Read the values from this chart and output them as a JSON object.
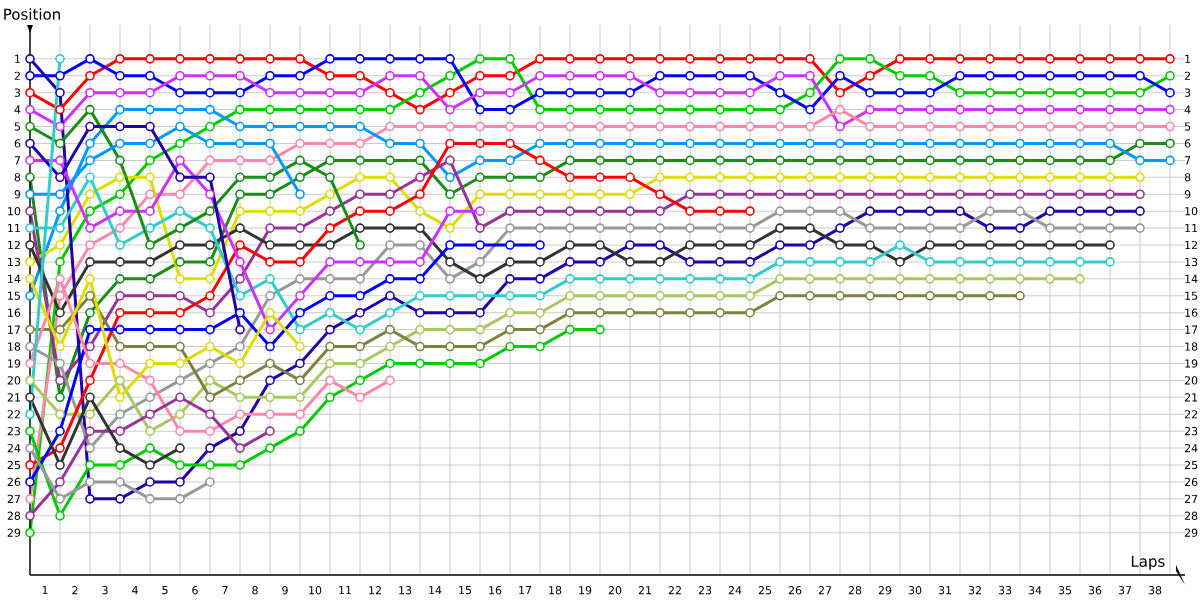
{
  "chart_data": {
    "type": "line",
    "xlabel": "Laps",
    "ylabel": "Position",
    "x": [
      0,
      1,
      2,
      3,
      4,
      5,
      6,
      7,
      8,
      9,
      10,
      11,
      12,
      13,
      14,
      15,
      16,
      17,
      18,
      19,
      20,
      21,
      22,
      23,
      24,
      25,
      26,
      27,
      28,
      29,
      30,
      31,
      32,
      33,
      34,
      35,
      36,
      37,
      38
    ],
    "xlim": [
      0,
      38.5
    ],
    "xticks": [
      {
        "value": 0.5,
        "label": "1"
      },
      {
        "value": 1.5,
        "label": "2"
      },
      {
        "value": 2.5,
        "label": "3"
      },
      {
        "value": 3.5,
        "label": "4"
      },
      {
        "value": 4.5,
        "label": "5"
      },
      {
        "value": 5.5,
        "label": "6"
      },
      {
        "value": 6.5,
        "label": "7"
      },
      {
        "value": 7.5,
        "label": "8"
      },
      {
        "value": 8.5,
        "label": "9"
      },
      {
        "value": 9.5,
        "label": "10"
      },
      {
        "value": 10.5,
        "label": "11"
      },
      {
        "value": 11.5,
        "label": "12"
      },
      {
        "value": 12.5,
        "label": "13"
      },
      {
        "value": 13.5,
        "label": "14"
      },
      {
        "value": 14.5,
        "label": "15"
      },
      {
        "value": 15.5,
        "label": "16"
      },
      {
        "value": 16.5,
        "label": "17"
      },
      {
        "value": 17.5,
        "label": "18"
      },
      {
        "value": 18.5,
        "label": "19"
      },
      {
        "value": 19.5,
        "label": "20"
      },
      {
        "value": 20.5,
        "label": "21"
      },
      {
        "value": 21.5,
        "label": "22"
      },
      {
        "value": 22.5,
        "label": "23"
      },
      {
        "value": 23.5,
        "label": "24"
      },
      {
        "value": 24.5,
        "label": "25"
      },
      {
        "value": 25.5,
        "label": "26"
      },
      {
        "value": 26.5,
        "label": "27"
      },
      {
        "value": 27.5,
        "label": "28"
      },
      {
        "value": 28.5,
        "label": "29"
      },
      {
        "value": 29.5,
        "label": "30"
      },
      {
        "value": 30.5,
        "label": "31"
      },
      {
        "value": 31.5,
        "label": "32"
      },
      {
        "value": 32.5,
        "label": "33"
      },
      {
        "value": 33.5,
        "label": "34"
      },
      {
        "value": 34.5,
        "label": "35"
      },
      {
        "value": 35.5,
        "label": "36"
      },
      {
        "value": 36.5,
        "label": "37"
      },
      {
        "value": 37.5,
        "label": "38"
      }
    ],
    "ylim": [
      31.5,
      -1
    ],
    "yticks": [
      1,
      2,
      3,
      4,
      5,
      6,
      7,
      8,
      9,
      10,
      11,
      12,
      13,
      14,
      15,
      16,
      17,
      18,
      19,
      20,
      21,
      22,
      23,
      24,
      25,
      26,
      27,
      28,
      29
    ],
    "y2lim": [
      31.5,
      -1
    ],
    "y2ticks": [
      1,
      2,
      3,
      4,
      5,
      6,
      7,
      8,
      9,
      10,
      11,
      12,
      13,
      14,
      15,
      16,
      17,
      18,
      19,
      20,
      21,
      22,
      23,
      24,
      25,
      26,
      27,
      28,
      29
    ],
    "grid": true,
    "marker": "circle",
    "line_style": "solid",
    "series": [
      {
        "color": "#ff0000",
        "values": [
          3,
          4,
          2,
          1,
          1,
          1,
          1,
          1,
          1,
          1,
          2,
          2,
          3,
          4,
          3,
          2,
          2,
          1,
          1,
          1,
          1,
          1,
          1,
          1,
          1,
          1,
          1,
          3,
          2,
          1,
          1,
          1,
          1,
          1,
          1,
          1,
          1,
          1,
          1
        ]
      },
      {
        "color": "#00cc00",
        "values": [
          29,
          13,
          10,
          9,
          7,
          6,
          5,
          4,
          4,
          4,
          4,
          4,
          4,
          3,
          2,
          1,
          1,
          4,
          4,
          4,
          4,
          4,
          4,
          4,
          4,
          4,
          3,
          1,
          1,
          2,
          2,
          3,
          3,
          3,
          3,
          3,
          3,
          3,
          2
        ]
      },
      {
        "color": "#0000ff",
        "values": [
          2,
          2,
          1,
          2,
          2,
          3,
          3,
          3,
          2,
          2,
          1,
          1,
          1,
          1,
          1,
          4,
          4,
          3,
          3,
          3,
          3,
          2,
          2,
          2,
          2,
          3,
          4,
          2,
          3,
          3,
          3,
          2,
          2,
          2,
          2,
          2,
          2,
          2,
          3
        ]
      },
      {
        "color": "#cc33ff",
        "values": [
          4,
          5,
          3,
          3,
          3,
          2,
          2,
          2,
          3,
          3,
          3,
          3,
          2,
          2,
          4,
          3,
          3,
          2,
          2,
          2,
          2,
          3,
          3,
          3,
          3,
          2,
          2,
          5,
          4,
          4,
          4,
          4,
          4,
          4,
          4,
          4,
          4,
          4,
          4
        ]
      },
      {
        "color": "#ff88aa",
        "values": [
          27,
          15,
          12,
          11,
          9,
          9,
          7,
          7,
          7,
          6,
          6,
          6,
          5,
          5,
          5,
          5,
          5,
          5,
          5,
          5,
          5,
          5,
          5,
          5,
          5,
          5,
          5,
          4,
          5,
          5,
          5,
          5,
          5,
          5,
          5,
          5,
          5,
          5,
          5
        ]
      },
      {
        "color": "#1a8c1a",
        "values": [
          8,
          21,
          16,
          14,
          14,
          13,
          13,
          9,
          9,
          8,
          7,
          7,
          7,
          7,
          9,
          8,
          8,
          8,
          7,
          7,
          7,
          7,
          7,
          7,
          7,
          7,
          7,
          7,
          7,
          7,
          7,
          7,
          7,
          7,
          7,
          7,
          7,
          6,
          6
        ]
      },
      {
        "color": "#0099ff",
        "values": [
          15,
          10,
          6,
          4,
          4,
          4,
          4,
          5,
          5,
          5,
          5,
          5,
          6,
          6,
          8,
          7,
          7,
          6,
          6,
          6,
          6,
          6,
          6,
          6,
          6,
          6,
          6,
          6,
          6,
          6,
          6,
          6,
          6,
          6,
          6,
          6,
          6,
          7,
          7
        ]
      },
      {
        "color": "#dddd00",
        "values": [
          13,
          12,
          9,
          8,
          8,
          14,
          14,
          10,
          10,
          10,
          9,
          8,
          8,
          10,
          11,
          9,
          9,
          9,
          9,
          9,
          9,
          8,
          8,
          8,
          8,
          8,
          8,
          8,
          8,
          8,
          8,
          8,
          8,
          8,
          8,
          8,
          8,
          8,
          null
        ]
      },
      {
        "color": "#993399",
        "values": [
          10,
          20,
          18,
          15,
          15,
          15,
          16,
          14,
          11,
          11,
          10,
          9,
          9,
          8,
          7,
          11,
          10,
          10,
          10,
          10,
          10,
          10,
          9,
          9,
          9,
          9,
          9,
          9,
          9,
          9,
          9,
          9,
          9,
          9,
          9,
          9,
          9,
          9,
          null
        ]
      },
      {
        "color": "#2200aa",
        "values": [
          1,
          3,
          27,
          27,
          26,
          26,
          24,
          23,
          20,
          19,
          17,
          16,
          15,
          16,
          16,
          16,
          14,
          14,
          13,
          13,
          12,
          12,
          13,
          13,
          13,
          12,
          12,
          11,
          10,
          10,
          10,
          10,
          11,
          11,
          10,
          10,
          10,
          10,
          null
        ]
      },
      {
        "color": "#999999",
        "values": [
          18,
          19,
          24,
          22,
          21,
          20,
          19,
          18,
          15,
          14,
          14,
          14,
          12,
          12,
          14,
          13,
          11,
          11,
          11,
          11,
          11,
          11,
          11,
          11,
          11,
          10,
          10,
          10,
          11,
          11,
          11,
          11,
          10,
          10,
          11,
          11,
          11,
          11,
          null
        ]
      },
      {
        "color": "#333333",
        "values": [
          12,
          16,
          13,
          13,
          13,
          12,
          12,
          11,
          12,
          12,
          12,
          11,
          11,
          11,
          13,
          14,
          13,
          13,
          12,
          12,
          13,
          13,
          12,
          12,
          12,
          11,
          11,
          12,
          12,
          13,
          12,
          12,
          12,
          12,
          12,
          12,
          12,
          null,
          null
        ]
      },
      {
        "color": "#33cccc",
        "values": [
          11,
          11,
          8,
          12,
          11,
          10,
          11,
          15,
          14,
          17,
          16,
          17,
          16,
          15,
          15,
          15,
          15,
          15,
          14,
          14,
          14,
          14,
          14,
          14,
          14,
          13,
          13,
          13,
          13,
          12,
          13,
          13,
          13,
          13,
          13,
          13,
          13,
          null,
          null
        ]
      },
      {
        "color": "#a8c860",
        "values": [
          20,
          22,
          22,
          20,
          23,
          22,
          20,
          21,
          21,
          21,
          19,
          19,
          18,
          17,
          17,
          17,
          16,
          16,
          15,
          15,
          15,
          15,
          15,
          15,
          15,
          14,
          14,
          14,
          14,
          14,
          14,
          14,
          14,
          14,
          14,
          14,
          null,
          null,
          null
        ]
      },
      {
        "color": "#808040",
        "values": [
          17,
          17,
          15,
          18,
          18,
          18,
          21,
          20,
          19,
          20,
          18,
          18,
          17,
          18,
          18,
          18,
          17,
          17,
          16,
          16,
          16,
          16,
          16,
          16,
          16,
          15,
          15,
          15,
          15,
          15,
          15,
          15,
          15,
          15,
          null,
          null,
          null,
          null,
          null
        ]
      },
      {
        "color": "#ff0000",
        "values": [
          25,
          24,
          20,
          16,
          16,
          16,
          15,
          12,
          13,
          13,
          11,
          10,
          10,
          9,
          6,
          6,
          6,
          7,
          8,
          8,
          8,
          9,
          10,
          10,
          10,
          null,
          null,
          null,
          null,
          null,
          null,
          null,
          null,
          null,
          null,
          null,
          null,
          null,
          null
        ]
      },
      {
        "color": "#00cc00",
        "values": [
          23,
          28,
          25,
          25,
          24,
          25,
          25,
          25,
          24,
          23,
          21,
          20,
          19,
          19,
          19,
          19,
          18,
          18,
          17,
          17,
          null,
          null,
          null,
          null,
          null,
          null,
          null,
          null,
          null,
          null,
          null,
          null,
          null,
          null,
          null,
          null,
          null,
          null,
          null
        ]
      },
      {
        "color": "#0000ff",
        "values": [
          26,
          23,
          17,
          17,
          17,
          17,
          17,
          16,
          18,
          16,
          15,
          15,
          14,
          14,
          12,
          12,
          12,
          12,
          null,
          null,
          null,
          null,
          null,
          null,
          null,
          null,
          null,
          null,
          null,
          null,
          null,
          null,
          null,
          null,
          null,
          null,
          null,
          null,
          null
        ]
      },
      {
        "color": "#cc33ff",
        "values": [
          7,
          7,
          11,
          10,
          10,
          7,
          9,
          13,
          17,
          15,
          13,
          13,
          13,
          13,
          10,
          10,
          null,
          null,
          null,
          null,
          null,
          null,
          null,
          null,
          null,
          null,
          null,
          null,
          null,
          null,
          null,
          null,
          null,
          null,
          null,
          null,
          null,
          null,
          null
        ]
      },
      {
        "color": "#ff88aa",
        "values": [
          19,
          14,
          19,
          19,
          20,
          23,
          23,
          22,
          22,
          22,
          20,
          21,
          20,
          null,
          null,
          null,
          null,
          null,
          null,
          null,
          null,
          null,
          null,
          null,
          null,
          null,
          null,
          null,
          null,
          null,
          null,
          null,
          null,
          null,
          null,
          null,
          null,
          null,
          null
        ]
      },
      {
        "color": "#1a8c1a",
        "values": [
          5,
          6,
          4,
          7,
          12,
          11,
          10,
          8,
          8,
          7,
          8,
          12,
          null,
          null,
          null,
          null,
          null,
          null,
          null,
          null,
          null,
          null,
          null,
          null,
          null,
          null,
          null,
          null,
          null,
          null,
          null,
          null,
          null,
          null,
          null,
          null,
          null,
          null,
          null
        ]
      },
      {
        "color": "#0099ff",
        "values": [
          9,
          9,
          7,
          6,
          6,
          5,
          6,
          6,
          6,
          9,
          null,
          null,
          null,
          null,
          null,
          null,
          null,
          null,
          null,
          null,
          null,
          null,
          null,
          null,
          null,
          null,
          null,
          null,
          null,
          null,
          null,
          null,
          null,
          null,
          null,
          null,
          null,
          null,
          null
        ]
      },
      {
        "color": "#dddd00",
        "values": [
          14,
          18,
          14,
          21,
          19,
          19,
          18,
          19,
          16,
          18,
          null,
          null,
          null,
          null,
          null,
          null,
          null,
          null,
          null,
          null,
          null,
          null,
          null,
          null,
          null,
          null,
          null,
          null,
          null,
          null,
          null,
          null,
          null,
          null,
          null,
          null,
          null,
          null,
          null
        ]
      },
      {
        "color": "#993399",
        "values": [
          28,
          26,
          23,
          23,
          22,
          21,
          22,
          24,
          23,
          null,
          null,
          null,
          null,
          null,
          null,
          null,
          null,
          null,
          null,
          null,
          null,
          null,
          null,
          null,
          null,
          null,
          null,
          null,
          null,
          null,
          null,
          null,
          null,
          null,
          null,
          null,
          null,
          null,
          null
        ]
      },
      {
        "color": "#2200aa",
        "values": [
          6,
          8,
          5,
          5,
          5,
          8,
          8,
          17,
          null,
          null,
          null,
          null,
          null,
          null,
          null,
          null,
          null,
          null,
          null,
          null,
          null,
          null,
          null,
          null,
          null,
          null,
          null,
          null,
          null,
          null,
          null,
          null,
          null,
          null,
          null,
          null,
          null,
          null,
          null
        ]
      },
      {
        "color": "#999999",
        "values": [
          24,
          27,
          26,
          26,
          27,
          27,
          26,
          null,
          null,
          null,
          null,
          null,
          null,
          null,
          null,
          null,
          null,
          null,
          null,
          null,
          null,
          null,
          null,
          null,
          null,
          null,
          null,
          null,
          null,
          null,
          null,
          null,
          null,
          null,
          null,
          null,
          null,
          null,
          null
        ]
      },
      {
        "color": "#333333",
        "values": [
          21,
          25,
          21,
          24,
          25,
          24,
          null,
          null,
          null,
          null,
          null,
          null,
          null,
          null,
          null,
          null,
          null,
          null,
          null,
          null,
          null,
          null,
          null,
          null,
          null,
          null,
          null,
          null,
          null,
          null,
          null,
          null,
          null,
          null,
          null,
          null,
          null,
          null,
          null
        ]
      },
      {
        "color": "#33cccc",
        "values": [
          22,
          1,
          null,
          null,
          null,
          null,
          null,
          null,
          null,
          null,
          null,
          null,
          null,
          null,
          null,
          null,
          null,
          null,
          null,
          null,
          null,
          null,
          null,
          null,
          null,
          null,
          null,
          null,
          null,
          null,
          null,
          null,
          null,
          null,
          null,
          null,
          null,
          null,
          null
        ]
      }
    ]
  }
}
